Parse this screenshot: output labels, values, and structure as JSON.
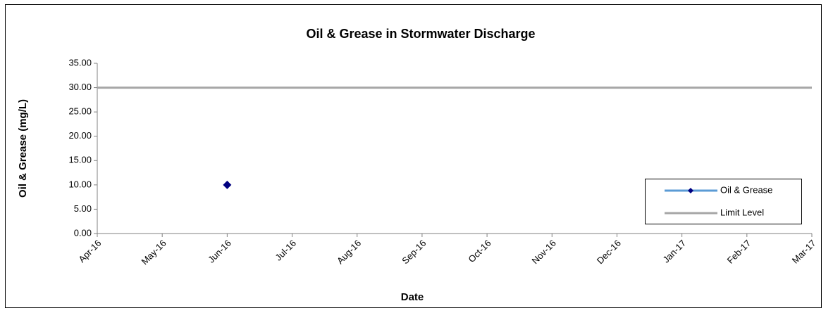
{
  "chart_data": {
    "type": "line",
    "title": "Oil & Grease in Stormwater Discharge",
    "x_label": "Date",
    "y_label": "Oil & Grease (mg/L)",
    "categories": [
      "Apr-16",
      "May-16",
      "Jun-16",
      "Jul-16",
      "Aug-16",
      "Sep-16",
      "Oct-16",
      "Nov-16",
      "Dec-16",
      "Jan-17",
      "Feb-17",
      "Mar-17"
    ],
    "series": [
      {
        "name": "Oil & Grease",
        "color": "#000080",
        "line_color": "#5b9bd5",
        "marker": "diamond",
        "values": [
          null,
          null,
          10,
          null,
          null,
          null,
          null,
          null,
          null,
          null,
          null,
          null
        ]
      },
      {
        "name": "Limit Level",
        "color": "#a6a6a6",
        "values": [
          30,
          30,
          30,
          30,
          30,
          30,
          30,
          30,
          30,
          30,
          30,
          30
        ]
      }
    ],
    "ylim": [
      0,
      35
    ],
    "yticks": [
      {
        "value": 0,
        "label": "0.00"
      },
      {
        "value": 5,
        "label": "5.00"
      },
      {
        "value": 10,
        "label": "10.00"
      },
      {
        "value": 15,
        "label": "15.00"
      },
      {
        "value": 20,
        "label": "20.00"
      },
      {
        "value": 25,
        "label": "25.00"
      },
      {
        "value": 30,
        "label": "30.00"
      },
      {
        "value": 35,
        "label": "35.00"
      }
    ],
    "grid": false,
    "legend_position": "right"
  }
}
